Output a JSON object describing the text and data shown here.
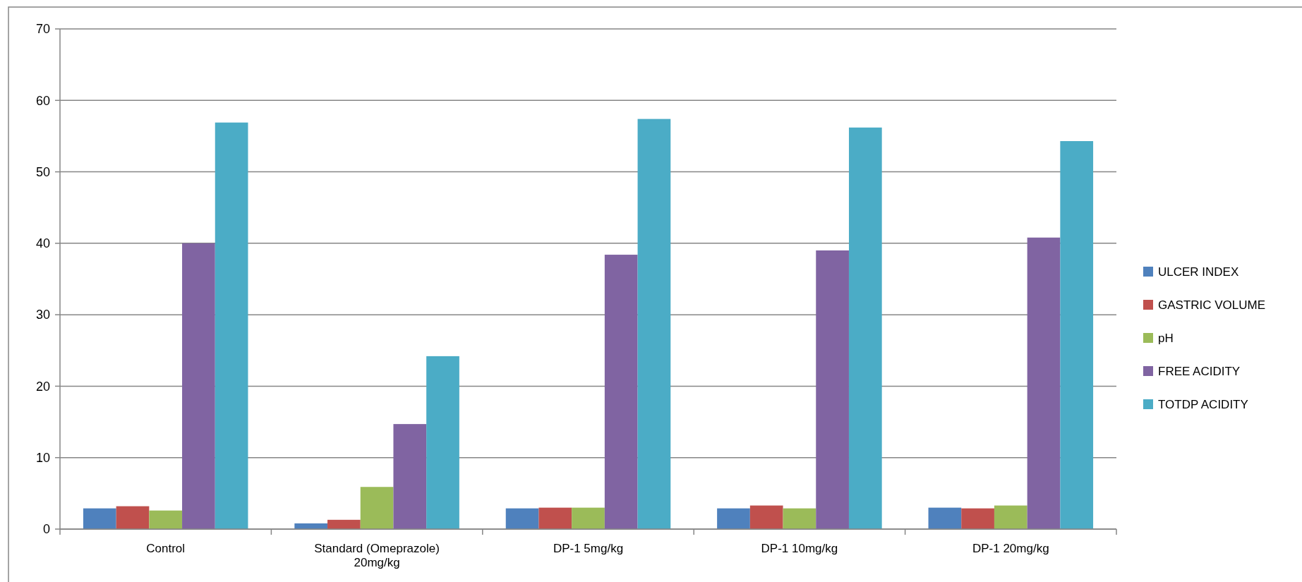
{
  "chart_data": {
    "type": "bar",
    "categories": [
      "Control",
      "Standard (Omeprazole)\n20mg/kg",
      "DP-1 5mg/kg",
      "DP-1 10mg/kg",
      "DP-1 20mg/kg"
    ],
    "series": [
      {
        "name": "ULCER INDEX",
        "color": "#4f81bd",
        "values": [
          2.9,
          0.8,
          2.9,
          2.9,
          3.0
        ]
      },
      {
        "name": "GASTRIC VOLUME",
        "color": "#c0504d",
        "values": [
          3.2,
          1.3,
          3.0,
          3.3,
          2.9
        ]
      },
      {
        "name": "pH",
        "color": "#9bbb59",
        "values": [
          2.6,
          5.9,
          3.0,
          2.9,
          3.3
        ]
      },
      {
        "name": "FREE ACIDITY",
        "color": "#8064a2",
        "values": [
          40.0,
          14.7,
          38.4,
          39.0,
          40.8
        ]
      },
      {
        "name": "TOTDP ACIDITY",
        "color": "#4bacc6",
        "values": [
          56.9,
          24.2,
          57.4,
          56.2,
          54.3
        ]
      }
    ],
    "ylim": [
      0,
      70
    ],
    "yticks": [
      0,
      10,
      20,
      30,
      40,
      50,
      60,
      70
    ],
    "grid": "y",
    "legend": "right"
  }
}
